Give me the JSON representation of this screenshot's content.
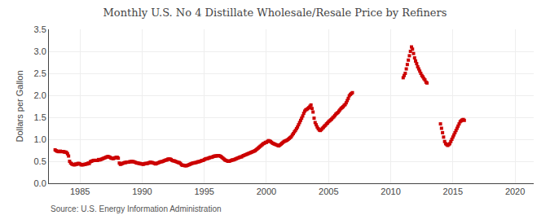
{
  "chart_data": {
    "type": "scatter",
    "title": "Monthly U.S. No 4 Distillate Wholesale/Resale Price by Refiners",
    "ylabel": "Dollars per Gallon",
    "source": "Source: U.S. Energy Information Administration",
    "color": "#CC0000",
    "marker": "square",
    "grid": true,
    "xlim": [
      1982.5,
      2021.5
    ],
    "xticks": [
      1985,
      1990,
      1995,
      2000,
      2005,
      2010,
      2015,
      2020
    ],
    "ylim": [
      0.0,
      3.5
    ],
    "yticks": [
      {
        "value": 0.0,
        "label": "0.0"
      },
      0.5,
      {
        "value": 1.0,
        "label": "1.0"
      },
      1.5,
      {
        "value": 2.0,
        "label": "2.0"
      },
      2.5,
      {
        "value": 3.0,
        "label": "3.0"
      },
      3.5
    ],
    "x": [
      1983,
      1983.0833333333,
      1983.1666666667,
      1983.25,
      1983.3333333333,
      1983.4166666667,
      1983.5,
      1983.5833333333,
      1983.6666666667,
      1983.75,
      1983.8333333333,
      1983.9166666667,
      1984,
      1984.0833333333,
      1984.1666666667,
      1984.25,
      1984.3333333333,
      1984.4166666667,
      1984.5,
      1984.5833333333,
      1984.6666666667,
      1984.75,
      1984.8333333333,
      1984.9166666667,
      1985,
      1985.0833333333,
      1985.1666666667,
      1985.25,
      1985.3333333333,
      1985.4166666667,
      1985.5,
      1985.5833333333,
      1985.6666666667,
      1985.75,
      1985.8333333333,
      1985.9166666667,
      1986,
      1986.0833333333,
      1986.1666666667,
      1986.25,
      1986.3333333333,
      1986.4166666667,
      1986.5,
      1986.5833333333,
      1986.6666666667,
      1986.75,
      1986.8333333333,
      1986.9166666667,
      1987,
      1987.0833333333,
      1987.1666666667,
      1987.25,
      1987.3333333333,
      1987.4166666667,
      1987.5,
      1987.5833333333,
      1987.6666666667,
      1987.75,
      1987.8333333333,
      1987.9166666667,
      1988,
      1988.0833333333,
      1988.1666666667,
      1988.25,
      1988.3333333333,
      1988.4166666667,
      1988.5,
      1988.5833333333,
      1988.6666666667,
      1988.75,
      1988.8333333333,
      1988.9166666667,
      1989,
      1989.0833333333,
      1989.1666666667,
      1989.25,
      1989.3333333333,
      1989.4166666667,
      1989.5,
      1989.5833333333,
      1989.6666666667,
      1989.75,
      1989.8333333333,
      1989.9166666667,
      1990,
      1990.0833333333,
      1990.1666666667,
      1990.25,
      1990.3333333333,
      1990.4166666667,
      1990.5,
      1990.5833333333,
      1990.6666666667,
      1990.75,
      1990.8333333333,
      1990.9166666667,
      1991,
      1991.0833333333,
      1991.1666666667,
      1991.25,
      1991.3333333333,
      1991.4166666667,
      1991.5,
      1991.5833333333,
      1991.6666666667,
      1991.75,
      1991.8333333333,
      1991.9166666667,
      1992,
      1992.0833333333,
      1992.1666666667,
      1992.25,
      1992.3333333333,
      1992.4166666667,
      1992.5,
      1992.5833333333,
      1992.6666666667,
      1992.75,
      1992.8333333333,
      1992.9166666667,
      1993,
      1993.0833333333,
      1993.1666666667,
      1993.25,
      1993.3333333333,
      1993.4166666667,
      1993.5,
      1993.5833333333,
      1993.6666666667,
      1993.75,
      1993.8333333333,
      1993.9166666667,
      1994,
      1994.0833333333,
      1994.1666666667,
      1994.25,
      1994.3333333333,
      1994.4166666667,
      1994.5,
      1994.5833333333,
      1994.6666666667,
      1994.75,
      1994.8333333333,
      1994.9166666667,
      1995,
      1995.0833333333,
      1995.1666666667,
      1995.25,
      1995.3333333333,
      1995.4166666667,
      1995.5,
      1995.5833333333,
      1995.6666666667,
      1995.75,
      1995.8333333333,
      1995.9166666667,
      1996,
      1996.0833333333,
      1996.1666666667,
      1996.25,
      1996.3333333333,
      1996.4166666667,
      1996.5,
      1996.5833333333,
      1996.6666666667,
      1996.75,
      1996.8333333333,
      1996.9166666667,
      1997,
      1997.0833333333,
      1997.1666666667,
      1997.25,
      1997.3333333333,
      1997.4166666667,
      1997.5,
      1997.5833333333,
      1997.6666666667,
      1997.75,
      1997.8333333333,
      1997.9166666667,
      1998,
      1998.0833333333,
      1998.1666666667,
      1998.25,
      1998.3333333333,
      1998.4166666667,
      1998.5,
      1998.5833333333,
      1998.6666666667,
      1998.75,
      1998.8333333333,
      1998.9166666667,
      1999,
      1999.0833333333,
      1999.1666666667,
      1999.25,
      1999.3333333333,
      1999.4166666667,
      1999.5,
      1999.5833333333,
      1999.6666666667,
      1999.75,
      1999.8333333333,
      1999.9166666667,
      2000,
      2000.0833333333,
      2000.1666666667,
      2000.25,
      2000.3333333333,
      2000.4166666667,
      2000.5,
      2000.5833333333,
      2000.6666666667,
      2000.75,
      2000.8333333333,
      2000.9166666667,
      2001,
      2001.0833333333,
      2001.1666666667,
      2001.25,
      2001.3333333333,
      2001.4166666667,
      2001.5,
      2001.5833333333,
      2001.6666666667,
      2001.75,
      2001.8333333333,
      2001.9166666667,
      2002,
      2002.0833333333,
      2002.1666666667,
      2002.25,
      2002.3333333333,
      2002.4166666667,
      2002.5,
      2002.5833333333,
      2002.6666666667,
      2002.75,
      2002.8333333333,
      2002.9166666667,
      2003,
      2003.0833333333,
      2003.1666666667,
      2003.25,
      2003.3333333333,
      2003.4166666667,
      2003.5,
      2003.5833333333,
      2003.6666666667,
      2003.75,
      2003.8333333333,
      2003.9166666667,
      2004,
      2004.0833333333,
      2004.1666666667,
      2004.25,
      2004.3333333333,
      2004.4166666667,
      2004.5,
      2004.5833333333,
      2004.6666666667,
      2004.75,
      2004.8333333333,
      2004.9166666667,
      2005,
      2005.0833333333,
      2005.1666666667,
      2005.25,
      2005.3333333333,
      2005.4166666667,
      2005.5,
      2005.5833333333,
      2005.6666666667,
      2005.75,
      2005.8333333333,
      2005.9166666667,
      2006,
      2006.0833333333,
      2006.1666666667,
      2006.25,
      2006.3333333333,
      2006.4166666667,
      2006.5,
      2006.5833333333,
      2006.6666666667,
      2006.75,
      2006.8333333333,
      2006.9166666667,
      2011,
      2011.0833333333,
      2011.1666666667,
      2011.25,
      2011.3333333333,
      2011.4166666667,
      2011.5,
      2011.5833333333,
      2011.6666666667,
      2011.75,
      2011.8333333333,
      2011.9166666667,
      2012,
      2012.0833333333,
      2012.1666666667,
      2012.25,
      2012.3333333333,
      2012.4166666667,
      2012.5,
      2012.5833333333,
      2012.6666666667,
      2012.75,
      2012.8333333333,
      2012.9166666667,
      2014,
      2014.0833333333,
      2014.1666666667,
      2014.25,
      2014.3333333333,
      2014.4166666667,
      2014.5,
      2014.5833333333,
      2014.6666666667,
      2014.75,
      2014.8333333333,
      2014.9166666667,
      2015,
      2015.0833333333,
      2015.1666666667,
      2015.25,
      2015.3333333333,
      2015.4166666667,
      2015.5,
      2015.5833333333,
      2015.6666666667,
      2015.75,
      2015.8333333333,
      2015.9166666667
    ],
    "values": [
      0.76,
      0.74,
      0.73,
      0.72,
      0.72,
      0.73,
      0.72,
      0.72,
      0.72,
      0.71,
      0.71,
      0.7,
      0.67,
      0.62,
      0.5,
      0.46,
      0.44,
      0.43,
      0.42,
      0.42,
      0.44,
      0.43,
      0.45,
      0.45,
      0.44,
      0.42,
      0.42,
      0.42,
      0.43,
      0.43,
      0.44,
      0.44,
      0.46,
      0.45,
      0.49,
      0.5,
      0.51,
      0.52,
      0.52,
      0.52,
      0.52,
      0.52,
      0.54,
      0.53,
      0.54,
      0.55,
      0.56,
      0.57,
      0.58,
      0.59,
      0.6,
      0.61,
      0.6,
      0.59,
      0.57,
      0.57,
      0.56,
      0.57,
      0.58,
      0.59,
      0.59,
      0.57,
      0.46,
      0.43,
      0.44,
      0.45,
      0.46,
      0.47,
      0.47,
      0.48,
      0.48,
      0.48,
      0.49,
      0.49,
      0.5,
      0.49,
      0.49,
      0.48,
      0.47,
      0.46,
      0.46,
      0.45,
      0.45,
      0.44,
      0.44,
      0.43,
      0.44,
      0.45,
      0.45,
      0.45,
      0.46,
      0.47,
      0.48,
      0.47,
      0.47,
      0.46,
      0.45,
      0.44,
      0.45,
      0.46,
      0.47,
      0.48,
      0.49,
      0.49,
      0.5,
      0.51,
      0.52,
      0.53,
      0.53,
      0.55,
      0.55,
      0.55,
      0.54,
      0.52,
      0.51,
      0.51,
      0.5,
      0.49,
      0.48,
      0.47,
      0.47,
      0.45,
      0.42,
      0.41,
      0.41,
      0.4,
      0.4,
      0.4,
      0.41,
      0.42,
      0.43,
      0.44,
      0.45,
      0.46,
      0.46,
      0.47,
      0.47,
      0.48,
      0.49,
      0.49,
      0.5,
      0.51,
      0.52,
      0.52,
      0.54,
      0.55,
      0.56,
      0.56,
      0.57,
      0.58,
      0.59,
      0.59,
      0.6,
      0.61,
      0.62,
      0.62,
      0.62,
      0.63,
      0.63,
      0.62,
      0.61,
      0.59,
      0.57,
      0.55,
      0.53,
      0.52,
      0.51,
      0.5,
      0.5,
      0.51,
      0.52,
      0.53,
      0.53,
      0.54,
      0.55,
      0.56,
      0.57,
      0.58,
      0.59,
      0.6,
      0.6,
      0.62,
      0.63,
      0.64,
      0.65,
      0.66,
      0.67,
      0.68,
      0.69,
      0.7,
      0.71,
      0.72,
      0.73,
      0.74,
      0.76,
      0.78,
      0.8,
      0.82,
      0.84,
      0.86,
      0.88,
      0.9,
      0.91,
      0.93,
      0.93,
      0.95,
      0.97,
      0.96,
      0.95,
      0.93,
      0.91,
      0.9,
      0.89,
      0.88,
      0.87,
      0.86,
      0.85,
      0.87,
      0.89,
      0.91,
      0.93,
      0.95,
      0.96,
      0.97,
      0.98,
      1.0,
      1.02,
      1.04,
      1.06,
      1.1,
      1.13,
      1.17,
      1.2,
      1.24,
      1.28,
      1.33,
      1.38,
      1.43,
      1.48,
      1.53,
      1.59,
      1.64,
      1.67,
      1.68,
      1.7,
      1.72,
      1.75,
      1.78,
      1.7,
      1.62,
      1.48,
      1.38,
      1.33,
      1.28,
      1.24,
      1.21,
      1.2,
      1.22,
      1.25,
      1.27,
      1.3,
      1.32,
      1.35,
      1.37,
      1.4,
      1.42,
      1.44,
      1.46,
      1.49,
      1.51,
      1.54,
      1.57,
      1.59,
      1.61,
      1.64,
      1.67,
      1.7,
      1.72,
      1.74,
      1.77,
      1.79,
      1.83,
      1.88,
      1.93,
      1.99,
      2.02,
      2.04,
      2.06,
      2.4,
      2.45,
      2.5,
      2.6,
      2.7,
      2.8,
      2.9,
      3.0,
      3.1,
      3.05,
      2.95,
      2.85,
      2.78,
      2.72,
      2.65,
      2.6,
      2.55,
      2.5,
      2.45,
      2.42,
      2.38,
      2.35,
      2.3,
      2.28,
      1.35,
      1.25,
      1.15,
      1.05,
      0.95,
      0.9,
      0.88,
      0.86,
      0.88,
      0.9,
      0.95,
      1.0,
      1.05,
      1.1,
      1.15,
      1.2,
      1.25,
      1.3,
      1.35,
      1.4,
      1.42,
      1.44,
      1.45,
      1.43
    ]
  }
}
